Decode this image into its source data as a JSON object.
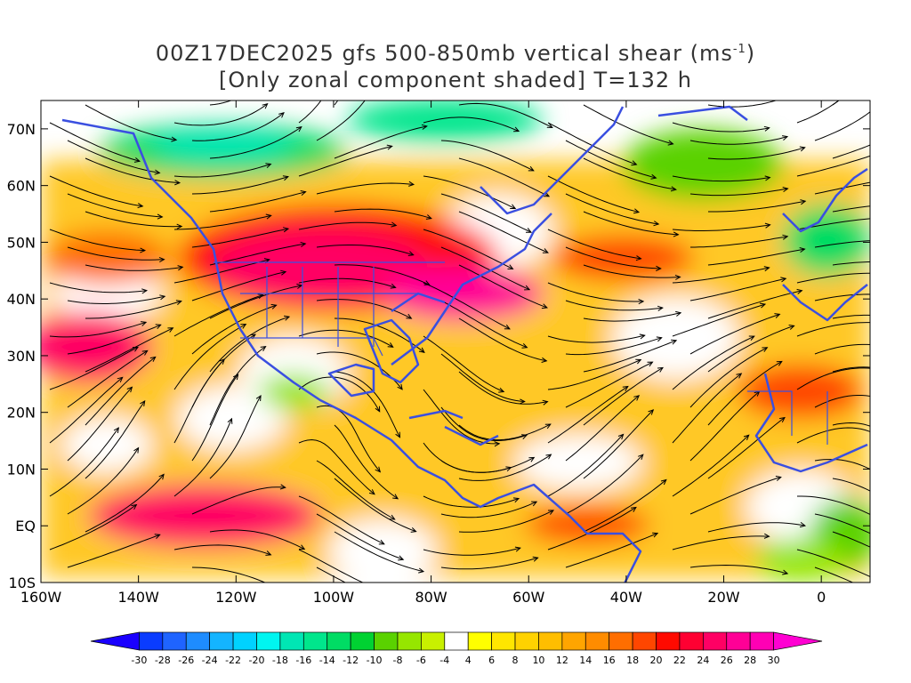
{
  "title_line1_prefix": "00Z17DEC2025 gfs 500-850mb vertical shear (ms",
  "title_line1_sup": "-1",
  "title_line1_suffix": ")",
  "title_line2": "[Only zonal component shaded] T=132 h",
  "map": {
    "lon_range": [
      -160,
      10
    ],
    "lat_range": [
      -10,
      75
    ],
    "lat_ticks": [
      {
        "lat": 70,
        "label": "70N"
      },
      {
        "lat": 60,
        "label": "60N"
      },
      {
        "lat": 50,
        "label": "50N"
      },
      {
        "lat": 40,
        "label": "40N"
      },
      {
        "lat": 30,
        "label": "30N"
      },
      {
        "lat": 20,
        "label": "20N"
      },
      {
        "lat": 10,
        "label": "10N"
      },
      {
        "lat": 0,
        "label": "EQ"
      },
      {
        "lat": -10,
        "label": "10S"
      }
    ],
    "lon_ticks": [
      {
        "lon": -160,
        "label": "160W"
      },
      {
        "lon": -140,
        "label": "140W"
      },
      {
        "lon": -120,
        "label": "120W"
      },
      {
        "lon": -100,
        "label": "100W"
      },
      {
        "lon": -80,
        "label": "80W"
      },
      {
        "lon": -60,
        "label": "60W"
      },
      {
        "lon": -40,
        "label": "40W"
      },
      {
        "lon": -20,
        "label": "20W"
      },
      {
        "lon": 0,
        "label": "0"
      }
    ],
    "coast_color": "#3a4fe0",
    "streamline_color": "#000000"
  },
  "colorbar": {
    "labels": [
      "-30",
      "-28",
      "-26",
      "-24",
      "-22",
      "-20",
      "-18",
      "-16",
      "-14",
      "-12",
      "-10",
      "-8",
      "-6",
      "-4",
      "4",
      "6",
      "8",
      "10",
      "12",
      "14",
      "16",
      "18",
      "20",
      "22",
      "24",
      "26",
      "28",
      "30"
    ],
    "colors": [
      "#1a00ff",
      "#0a3cff",
      "#1f64ff",
      "#1e8cff",
      "#14b4ff",
      "#00d2ff",
      "#00f5f0",
      "#00e6b4",
      "#00e68c",
      "#00dc64",
      "#00d232",
      "#5ad200",
      "#96e600",
      "#c8f000",
      "#ffffff",
      "#ffff00",
      "#ffe600",
      "#ffd200",
      "#ffbe00",
      "#ffa500",
      "#ff8c00",
      "#ff6e00",
      "#ff4600",
      "#ff0a00",
      "#ff0032",
      "#ff0064",
      "#ff0096",
      "#ff00b4",
      "#ff00d2"
    ]
  }
}
